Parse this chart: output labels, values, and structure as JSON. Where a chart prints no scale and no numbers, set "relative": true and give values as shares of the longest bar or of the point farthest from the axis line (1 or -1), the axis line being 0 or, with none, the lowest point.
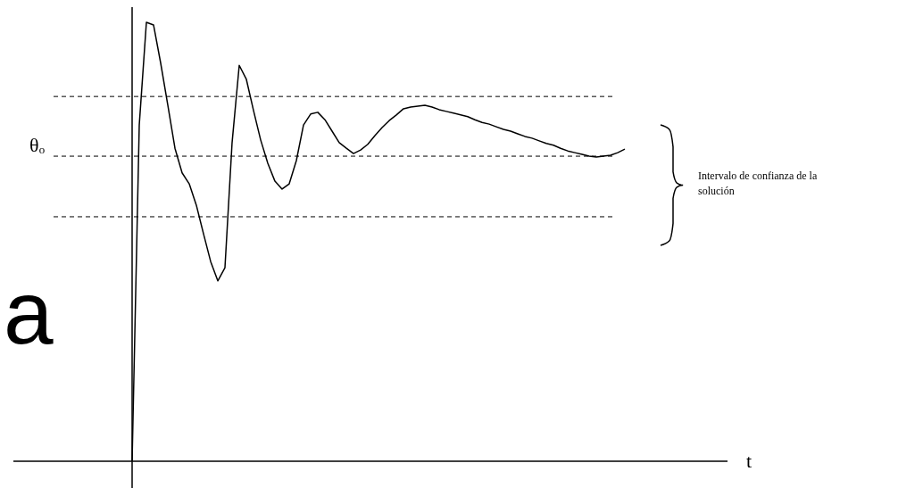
{
  "chart_data": {
    "type": "line",
    "relative": true,
    "line_style": "solid",
    "marker": "none",
    "categories": [
      null,
      null,
      null,
      null,
      null,
      null,
      null,
      null,
      null,
      null,
      null,
      null,
      null,
      null,
      null,
      null,
      null,
      null,
      null,
      null,
      null,
      null,
      null,
      null,
      null,
      null,
      null,
      null,
      null,
      null,
      null,
      null,
      null,
      null,
      null,
      null,
      null,
      null,
      null,
      null,
      null,
      null,
      null,
      null,
      null,
      null,
      null,
      null,
      null,
      null,
      null,
      null,
      null,
      null,
      null,
      null,
      null,
      null,
      null,
      null,
      null,
      null,
      null,
      null,
      null,
      null,
      null,
      null,
      null,
      null
    ],
    "series": [
      {
        "color": "#000000",
        "values": [
          0,
          0.766,
          1,
          0.994,
          0.907,
          0.811,
          0.713,
          0.657,
          0.632,
          0.583,
          0.518,
          0.455,
          0.411,
          0.441,
          0.726,
          0.902,
          0.87,
          0.799,
          0.732,
          0.679,
          0.638,
          0.62,
          0.632,
          0.685,
          0.766,
          0.791,
          0.795,
          0.778,
          0.752,
          0.726,
          0.713,
          0.701,
          0.709,
          0.722,
          0.742,
          0.76,
          0.776,
          0.789,
          0.803,
          0.807,
          0.809,
          0.811,
          0.807,
          0.801,
          0.797,
          0.793,
          0.789,
          0.785,
          0.778,
          0.772,
          0.768,
          0.762,
          0.756,
          0.752,
          0.746,
          0.74,
          0.736,
          0.73,
          0.724,
          0.72,
          0.713,
          0.707,
          0.703,
          0.699,
          0.695,
          0.693,
          0.695,
          0.697,
          0.703,
          0.711
        ]
      }
    ],
    "ref_lines": [
      {
        "axis": "y",
        "value": 0.831,
        "line_style": "dashed",
        "color": "#000000"
      },
      {
        "axis": "y",
        "value": 0.695,
        "label": "θₒ",
        "line_style": "dashed",
        "color": "#000000"
      },
      {
        "axis": "y",
        "value": 0.557,
        "line_style": "dashed",
        "color": "#000000"
      }
    ],
    "annotations": [
      "a",
      "t",
      "Intervalo de confianza de la solución"
    ]
  }
}
